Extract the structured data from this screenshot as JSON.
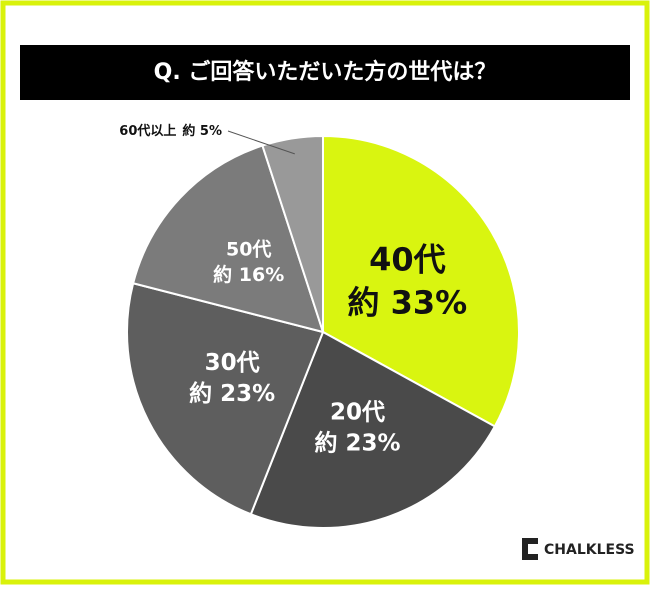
{
  "chart_data": {
    "type": "pie",
    "title": "Q. ご回答いただいた方の世代は？",
    "categories": [
      "40代",
      "20代",
      "30代",
      "50代",
      "60代以上"
    ],
    "values": [
      33,
      23,
      23,
      16,
      5
    ],
    "value_labels": [
      "約 33%",
      "約 23%",
      "約 23%",
      "約 16%",
      "約 5%"
    ],
    "colors": [
      "#d9f510",
      "#4a4a4a",
      "#5e5e5e",
      "#7b7b7b",
      "#999999"
    ]
  },
  "logo": "CHALKLESS"
}
